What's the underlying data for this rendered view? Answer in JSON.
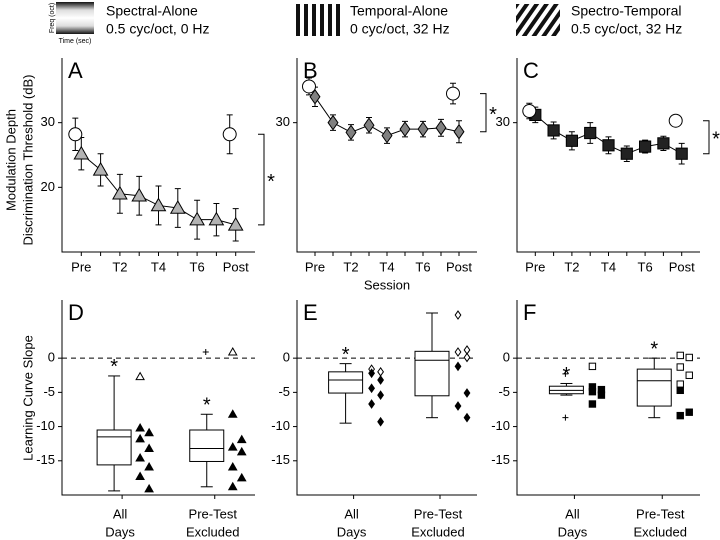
{
  "figure": {
    "ylabel_top": [
      "Modulation Depth",
      "Discrimination Threshold (dB)"
    ],
    "xlabel_top": "Session",
    "ylabel_bottom": "Learning Curve Slope",
    "icon_ylabel": "Freq (oct)",
    "icon_xlabel": "Time (sec)"
  },
  "chart_data": [
    {
      "type": "line",
      "panel": "A",
      "title": "Spectral-Alone",
      "subtitle": "0.5 cyc/oct, 0 Hz",
      "categories": [
        "Pre",
        null,
        "T2",
        null,
        "T4",
        null,
        "T6",
        null,
        "Post"
      ],
      "series": [
        {
          "marker": "triangle",
          "color": "#b3b3b3",
          "values": [
            25.2,
            22.7,
            19,
            18.7,
            17.2,
            16.8,
            15,
            15,
            14.2
          ],
          "errors": [
            2.5,
            2.5,
            3,
            3,
            3,
            3,
            3,
            2.5,
            2.5
          ]
        },
        {
          "marker": "circle",
          "color": "#ffffff",
          "values": [
            28.2,
            null,
            null,
            null,
            null,
            null,
            null,
            null,
            28.2
          ],
          "errors": [
            2.5,
            null,
            null,
            null,
            null,
            null,
            null,
            null,
            3
          ]
        }
      ],
      "ylim": [
        10,
        40
      ],
      "yticks": [
        20,
        30
      ],
      "annotation": "*"
    },
    {
      "type": "line",
      "panel": "B",
      "title": "Temporal-Alone",
      "subtitle": "0 cyc/oct, 32 Hz",
      "categories": [
        "Pre",
        null,
        "T2",
        null,
        "T4",
        null,
        "T6",
        null,
        "Post"
      ],
      "series": [
        {
          "marker": "diamond",
          "color": "#808080",
          "values": [
            34,
            30,
            28.5,
            29.6,
            28,
            29,
            29,
            29.2,
            28.6
          ],
          "errors": [
            1.5,
            1.2,
            1.2,
            1.2,
            1.2,
            1.2,
            1.2,
            1.3,
            1.7
          ]
        },
        {
          "marker": "circle",
          "color": "#ffffff",
          "values": [
            35.6,
            null,
            null,
            null,
            null,
            null,
            null,
            null,
            34.5
          ],
          "errors": [
            1.3,
            null,
            null,
            null,
            null,
            null,
            null,
            null,
            1.6
          ]
        }
      ],
      "ylim": [
        10,
        40
      ],
      "yticks": [
        30
      ],
      "annotation": "*"
    },
    {
      "type": "line",
      "panel": "C",
      "title": "Spectro-Temporal",
      "subtitle": "0.5 cyc/oct, 32 Hz",
      "categories": [
        "Pre",
        null,
        "T2",
        null,
        "T4",
        null,
        "T6",
        null,
        "Post"
      ],
      "series": [
        {
          "marker": "square",
          "color": "#222222",
          "values": [
            31.2,
            28.8,
            27.2,
            28.4,
            26.5,
            25.2,
            26.3,
            26.8,
            25.2
          ],
          "errors": [
            1.2,
            1.3,
            1.4,
            1.6,
            1.3,
            1.2,
            1,
            1.1,
            1.6
          ]
        },
        {
          "marker": "circle",
          "color": "#ffffff",
          "values": [
            31.8,
            null,
            null,
            null,
            null,
            null,
            null,
            null,
            30.3
          ],
          "errors": [
            1.2,
            null,
            null,
            null,
            null,
            null,
            null,
            null,
            0.8
          ]
        }
      ],
      "ylim": [
        10,
        40
      ],
      "yticks": [
        30
      ],
      "annotation": "*"
    },
    {
      "type": "box",
      "panel": "D",
      "marker": "triangle",
      "categories": [
        [
          "All",
          "Days"
        ],
        [
          "Pre-Test",
          "Excluded"
        ]
      ],
      "boxes": [
        {
          "whisker_low": -19.4,
          "q1": -15.6,
          "median": -11.5,
          "q3": -10.5,
          "whisker_high": -2.6,
          "outliers": [],
          "annotation": "*"
        },
        {
          "whisker_low": -18.8,
          "q1": -15.1,
          "median": -13.2,
          "q3": -10.5,
          "whisker_high": -8.2,
          "outliers": [
            0.9
          ],
          "annotation": "*"
        }
      ],
      "points": [
        {
          "filled": [
            -10.2,
            -10.9,
            -11.8,
            -13.2,
            -14.6,
            -15.9,
            -17.3,
            -19.1
          ],
          "open": [
            -2.7
          ]
        },
        {
          "filled": [
            -8.2,
            -11.9,
            -13,
            -13.7,
            -15.9,
            -17.5,
            -18.8
          ],
          "open": [
            0.9
          ]
        }
      ],
      "ylim": [
        -20,
        8.5
      ],
      "yticks": [
        0,
        -5,
        -10,
        -15
      ],
      "reference_line": 0
    },
    {
      "type": "box",
      "panel": "E",
      "marker": "diamond",
      "categories": [
        [
          "All",
          "Days"
        ],
        [
          "Pre-Test",
          "Excluded"
        ]
      ],
      "boxes": [
        {
          "whisker_low": -9.5,
          "q1": -5.1,
          "median": -3.2,
          "q3": -2,
          "whisker_high": -0.8,
          "outliers": [],
          "annotation": "*"
        },
        {
          "whisker_low": -8.7,
          "q1": -5.5,
          "median": -0.3,
          "q3": 1,
          "whisker_high": 6.6,
          "outliers": []
        }
      ],
      "points": [
        {
          "filled": [
            -2.2,
            -3.2,
            -4.4,
            -5.4,
            -6.7,
            -9.3
          ],
          "open": [
            -1.6,
            -2
          ]
        },
        {
          "filled": [
            -1.2,
            -5.1,
            -7,
            -8.7
          ],
          "open": [
            6.3,
            1.2,
            0.9,
            0.1
          ]
        }
      ],
      "ylim": [
        -20,
        8.5
      ],
      "yticks": [
        0,
        -5,
        -10,
        -15
      ],
      "reference_line": 0
    },
    {
      "type": "box",
      "panel": "F",
      "marker": "square",
      "categories": [
        [
          "All",
          "Days"
        ],
        [
          "Pre-Test",
          "Excluded"
        ]
      ],
      "boxes": [
        {
          "whisker_low": -5.4,
          "q1": -5.2,
          "median": -4.7,
          "q3": -4.1,
          "whisker_high": -3.7,
          "outliers": [
            -2.3,
            -8.7
          ],
          "annotation": "*"
        },
        {
          "whisker_low": -8.7,
          "q1": -7,
          "median": -3.3,
          "q3": -1.6,
          "whisker_high": 0,
          "outliers": [],
          "annotation": "*"
        }
      ],
      "points": [
        {
          "filled": [
            -4.2,
            -4.6,
            -4.9,
            -5.4,
            -6.7
          ],
          "open": [
            -1.2
          ]
        },
        {
          "filled": [
            -4.7,
            -7.9,
            -8.4
          ],
          "open": [
            0.4,
            0.1,
            -1.3,
            -2.5,
            -3.8
          ]
        }
      ],
      "ylim": [
        -20,
        8.5
      ],
      "yticks": [
        0,
        -5,
        -10,
        -15
      ],
      "reference_line": 0
    }
  ]
}
